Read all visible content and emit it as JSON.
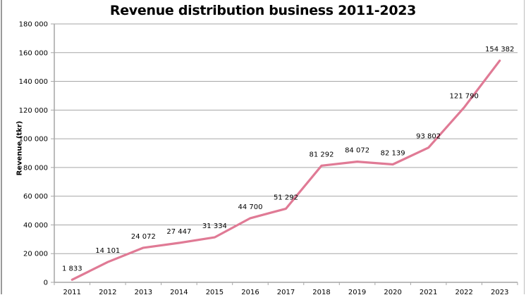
{
  "chart_data": {
    "type": "line",
    "title": "Revenue distribution business 2011-2023",
    "xlabel": "",
    "ylabel": "Revenue (tkr)",
    "ylim": [
      0,
      180000
    ],
    "yticks": [
      0,
      20000,
      40000,
      60000,
      80000,
      100000,
      120000,
      140000,
      160000,
      180000
    ],
    "ytick_labels": [
      "0",
      "20 000",
      "40 000",
      "60 000",
      "80 000",
      "100 000",
      "120 000",
      "140 000",
      "160 000",
      "180 000"
    ],
    "grid": true,
    "legend": "none",
    "categories": [
      "2011",
      "2012",
      "2013",
      "2014",
      "2015",
      "2016",
      "2017",
      "2018",
      "2019",
      "2020",
      "2021",
      "2022",
      "2023"
    ],
    "series": [
      {
        "name": "Revenue",
        "color": "#e07a95",
        "values": [
          1833,
          14101,
          24072,
          27447,
          31334,
          44700,
          51292,
          81292,
          84072,
          82139,
          93802,
          121790,
          154382
        ],
        "data_labels": [
          "1 833",
          "14 101",
          "24 072",
          "27 447",
          "31 334",
          "44 700",
          "51 292",
          "81 292",
          "84 072",
          "82 139",
          "93 802",
          "121 790",
          "154 382"
        ]
      }
    ]
  }
}
